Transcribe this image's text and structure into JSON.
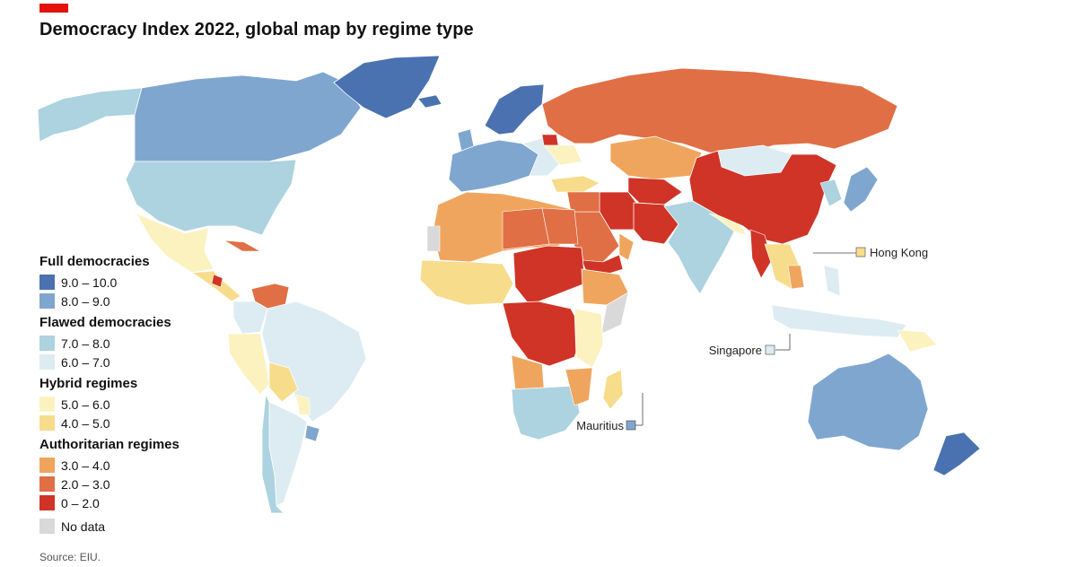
{
  "header": {
    "title": "Democracy Index 2022, global map by regime type",
    "accent_color": "#e3120b"
  },
  "legend": {
    "groups": [
      {
        "title": "Full democracies",
        "items": [
          {
            "label": "9.0 – 10.0",
            "color": "#4a72b0"
          },
          {
            "label": "8.0 – 9.0",
            "color": "#7fa6cf"
          }
        ]
      },
      {
        "title": "Flawed democracies",
        "items": [
          {
            "label": "7.0 – 8.0",
            "color": "#acd3df"
          },
          {
            "label": "6.0 – 7.0",
            "color": "#dcecf2"
          }
        ]
      },
      {
        "title": "Hybrid regimes",
        "items": [
          {
            "label": "5.0 – 6.0",
            "color": "#fbf2c0"
          },
          {
            "label": "4.0 – 5.0",
            "color": "#f7dc8c"
          }
        ]
      },
      {
        "title": "Authoritarian regimes",
        "items": [
          {
            "label": "3.0 – 4.0",
            "color": "#f0a55e"
          },
          {
            "label": "2.0 – 3.0",
            "color": "#e06f45"
          },
          {
            "label": "0 – 2.0",
            "color": "#cf3427"
          }
        ]
      },
      {
        "title": "",
        "items": [
          {
            "label": "No data",
            "color": "#d9d9d9"
          }
        ]
      }
    ]
  },
  "callouts": {
    "hong_kong": {
      "label": "Hong Kong",
      "color": "#f7dc8c"
    },
    "singapore": {
      "label": "Singapore",
      "color": "#dcecf2"
    },
    "mauritius": {
      "label": "Mauritius",
      "color": "#7fa6cf"
    }
  },
  "source": {
    "text": "Source: EIU."
  }
}
